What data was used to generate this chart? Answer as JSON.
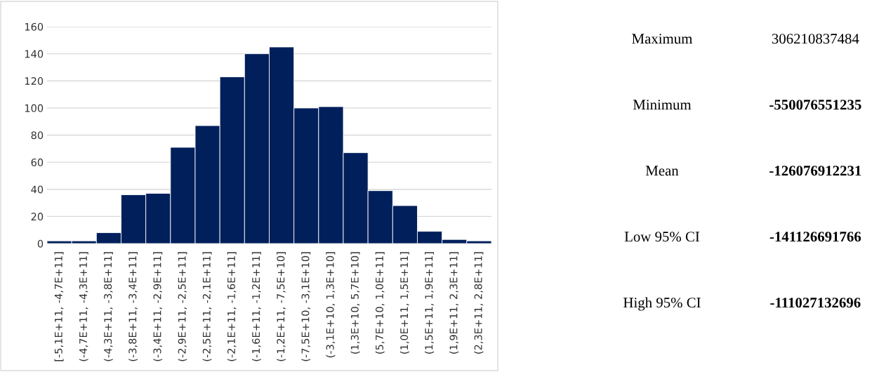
{
  "chart_data": [
    {
      "type": "bar",
      "categories": [
        "[-5,1E+11, -4,7E+11]",
        "(-4,7E+11, -4,3E+11]",
        "(-4,3E+11, -3,8E+11]",
        "(-3,8E+11, -3,4E+11]",
        "(-3,4E+11, -2,9E+11]",
        "(-2,9E+11, -2,5E+11]",
        "(-2,5E+11, -2,1E+11]",
        "(-2,1E+11, -1,6E+11]",
        "(-1,6E+11, -1,2E+11]",
        "(-1,2E+11, -7,5E+10]",
        "(-7,5E+10, -3,1E+10]",
        "(-3,1E+10, 1,3E+10]",
        "(1,3E+10, 5,7E+10]",
        "(5,7E+10, 1,0E+11]",
        "(1,0E+11, 1,5E+11]",
        "(1,5E+11, 1,9E+11]",
        "(1,9E+11, 2,3E+11]",
        "(2,3E+11, 2,8E+11]"
      ],
      "values": [
        2,
        2,
        8,
        36,
        37,
        71,
        87,
        123,
        140,
        145,
        100,
        101,
        67,
        39,
        28,
        9,
        3,
        2
      ],
      "color": "#001f5b",
      "ylim": [
        0,
        160
      ],
      "yticks": [
        0,
        20,
        40,
        60,
        80,
        100,
        120,
        140,
        160
      ],
      "grid": "y"
    },
    {
      "type": "other",
      "annotations": [
        "Maximum",
        "306210837484",
        "Minimum",
        "-550076551235",
        "Mean",
        "-126076912231",
        "Low 95% CI",
        "-141126691766",
        "High 95% CI",
        "-111027132696"
      ]
    }
  ]
}
